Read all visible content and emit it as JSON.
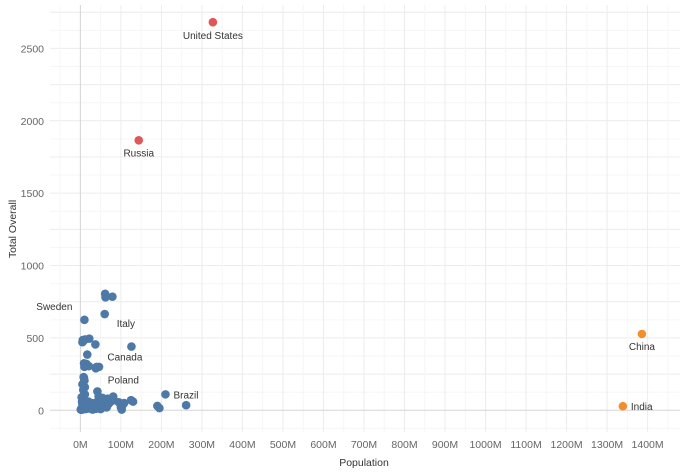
{
  "chart_data": {
    "type": "scatter",
    "xlabel": "Population",
    "ylabel": "Total Overall",
    "xlim": [
      -75,
      1480
    ],
    "ylim": [
      -150,
      2800
    ],
    "x_ticks": [
      0,
      100,
      200,
      300,
      400,
      500,
      600,
      700,
      800,
      900,
      1000,
      1100,
      1200,
      1300,
      1400
    ],
    "x_tick_labels": [
      "0M",
      "100M",
      "200M",
      "300M",
      "400M",
      "500M",
      "600M",
      "700M",
      "800M",
      "900M",
      "1000M",
      "1100M",
      "1200M",
      "1300M",
      "1400M"
    ],
    "y_ticks": [
      0,
      500,
      1000,
      1500,
      2000,
      2500
    ],
    "y_tick_labels": [
      "0",
      "500",
      "1000",
      "1500",
      "2000",
      "2500"
    ],
    "grid": true,
    "colors": {
      "default": "#4e79a7",
      "highlight_red": "#e15759",
      "highlight_orange": "#f28e2b"
    },
    "series": [
      {
        "color_key": "highlight_red",
        "points": [
          {
            "x": 327,
            "y": 2681,
            "label": "United States"
          },
          {
            "x": 144,
            "y": 1865,
            "label": "Russia"
          }
        ]
      },
      {
        "color_key": "highlight_orange",
        "points": [
          {
            "x": 1386,
            "y": 527,
            "label": "China"
          },
          {
            "x": 1339,
            "y": 28,
            "label": "India"
          }
        ]
      },
      {
        "color_key": "default",
        "points": [
          {
            "x": 10,
            "y": 625,
            "label": "Sweden"
          },
          {
            "x": 60,
            "y": 665,
            "label": "Italy"
          },
          {
            "x": 37,
            "y": 455,
            "label": "Canada"
          },
          {
            "x": 38,
            "y": 290,
            "label": "Poland"
          },
          {
            "x": 210,
            "y": 110,
            "label": "Brazil"
          },
          {
            "x": 61,
            "y": 805
          },
          {
            "x": 62,
            "y": 780
          },
          {
            "x": 79,
            "y": 785
          },
          {
            "x": 126,
            "y": 440
          },
          {
            "x": 5,
            "y": 470
          },
          {
            "x": 6,
            "y": 485
          },
          {
            "x": 8,
            "y": 480
          },
          {
            "x": 12,
            "y": 490
          },
          {
            "x": 22,
            "y": 495
          },
          {
            "x": 17,
            "y": 385
          },
          {
            "x": 9,
            "y": 325
          },
          {
            "x": 10,
            "y": 300
          },
          {
            "x": 15,
            "y": 320
          },
          {
            "x": 21,
            "y": 305
          },
          {
            "x": 40,
            "y": 300
          },
          {
            "x": 46,
            "y": 300
          },
          {
            "x": 8,
            "y": 230
          },
          {
            "x": 9,
            "y": 220
          },
          {
            "x": 10,
            "y": 205
          },
          {
            "x": 5,
            "y": 180
          },
          {
            "x": 11,
            "y": 160
          },
          {
            "x": 7,
            "y": 140
          },
          {
            "x": 42,
            "y": 130
          },
          {
            "x": 81,
            "y": 95
          },
          {
            "x": 67,
            "y": 80
          },
          {
            "x": 45,
            "y": 95
          },
          {
            "x": 11,
            "y": 110
          },
          {
            "x": 3,
            "y": 90
          },
          {
            "x": 4,
            "y": 60
          },
          {
            "x": 5,
            "y": 40
          },
          {
            "x": 6,
            "y": 20
          },
          {
            "x": 2,
            "y": 10
          },
          {
            "x": 1,
            "y": 5
          },
          {
            "x": 3,
            "y": 3
          },
          {
            "x": 8,
            "y": 15
          },
          {
            "x": 9,
            "y": 30
          },
          {
            "x": 10,
            "y": 50
          },
          {
            "x": 12,
            "y": 8
          },
          {
            "x": 14,
            "y": 25
          },
          {
            "x": 16,
            "y": 45
          },
          {
            "x": 18,
            "y": 12
          },
          {
            "x": 20,
            "y": 60
          },
          {
            "x": 22,
            "y": 35
          },
          {
            "x": 25,
            "y": 18
          },
          {
            "x": 28,
            "y": 50
          },
          {
            "x": 30,
            "y": 5
          },
          {
            "x": 33,
            "y": 28
          },
          {
            "x": 35,
            "y": 40
          },
          {
            "x": 38,
            "y": 10
          },
          {
            "x": 40,
            "y": 55
          },
          {
            "x": 44,
            "y": 22
          },
          {
            "x": 47,
            "y": 70
          },
          {
            "x": 50,
            "y": 8
          },
          {
            "x": 53,
            "y": 15
          },
          {
            "x": 55,
            "y": 85
          },
          {
            "x": 58,
            "y": 40
          },
          {
            "x": 65,
            "y": 20
          },
          {
            "x": 70,
            "y": 45
          },
          {
            "x": 75,
            "y": 60
          },
          {
            "x": 83,
            "y": 70
          },
          {
            "x": 95,
            "y": 55
          },
          {
            "x": 100,
            "y": 20
          },
          {
            "x": 102,
            "y": 5
          },
          {
            "x": 104,
            "y": 35
          },
          {
            "x": 108,
            "y": 50
          },
          {
            "x": 125,
            "y": 70
          },
          {
            "x": 130,
            "y": 60
          },
          {
            "x": 190,
            "y": 30
          },
          {
            "x": 195,
            "y": 15
          },
          {
            "x": 261,
            "y": 35
          }
        ]
      }
    ]
  }
}
